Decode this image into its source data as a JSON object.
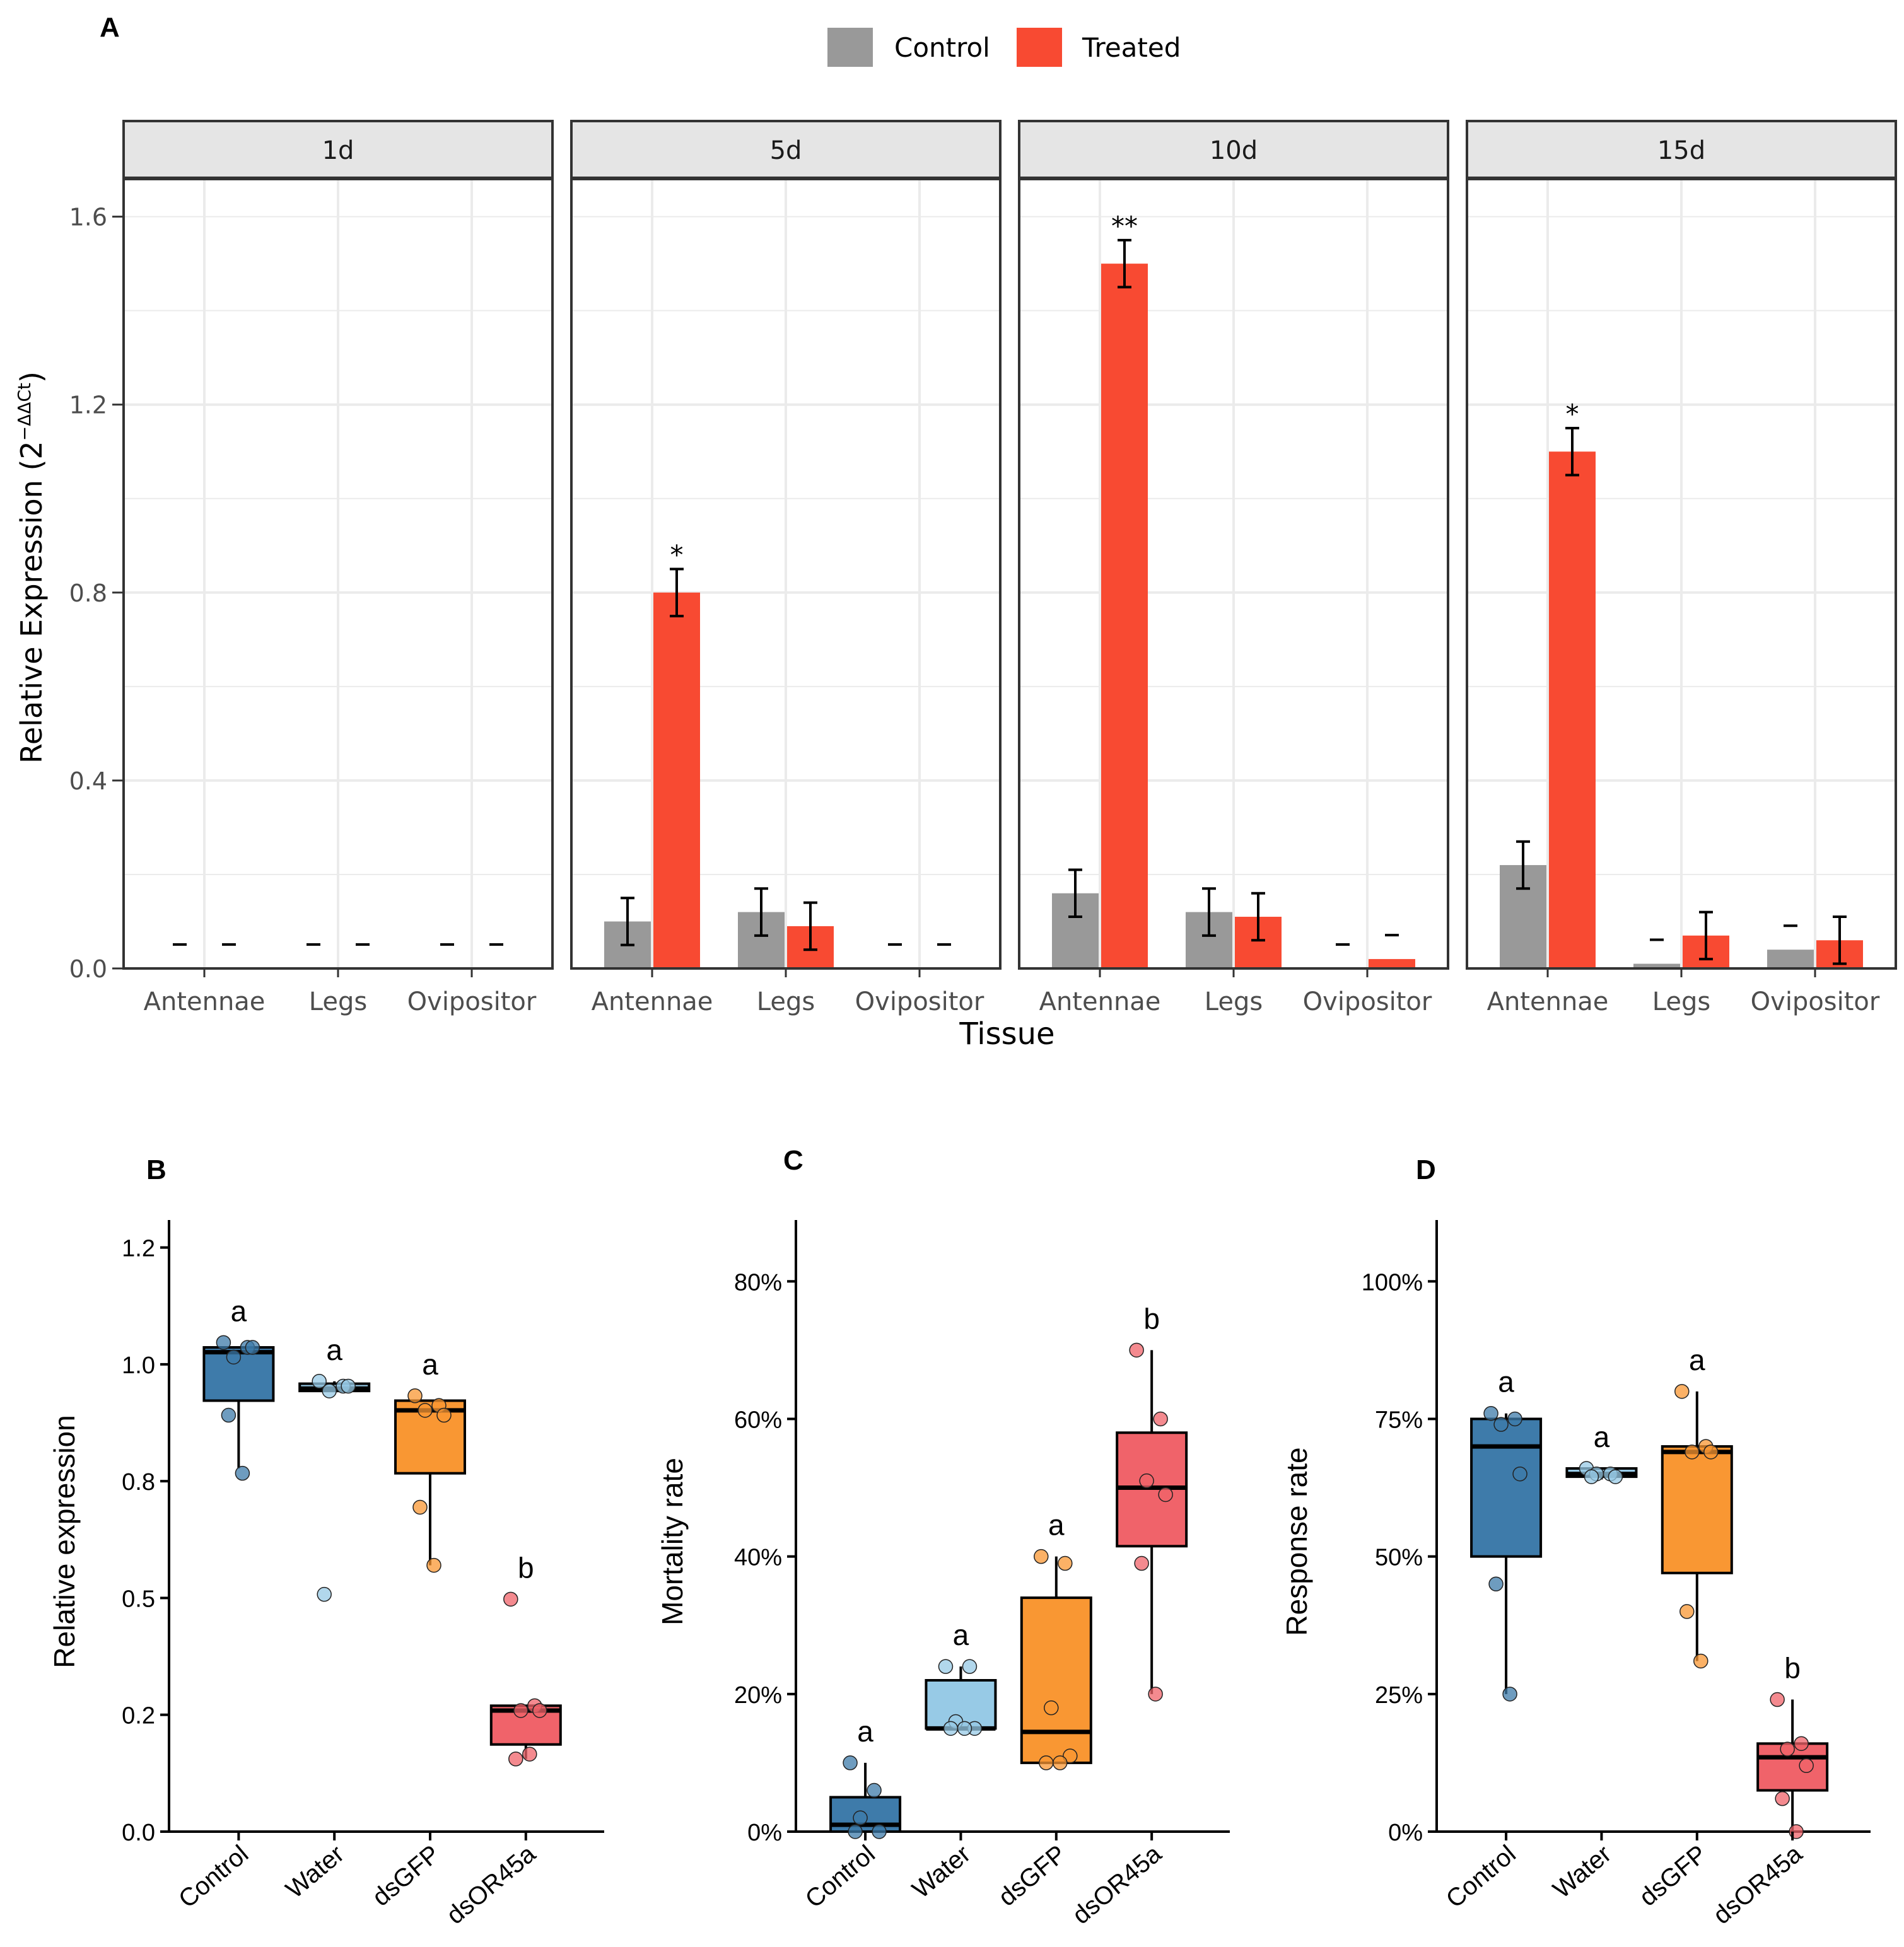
{
  "colors": {
    "control": "#999999",
    "treated": "#F84A32",
    "box_control": "#3E7BAA",
    "box_water": "#97CAE6",
    "box_dsgfp": "#F99733",
    "box_dsor45a": "#F0636A",
    "strip_fill": "#E5E5E5",
    "grid": "#EBEBEB"
  },
  "chart_data": [
    {
      "panel": "A",
      "type": "bar",
      "legend": [
        "Control",
        "Treated"
      ],
      "xlabel": "Tissue",
      "ylabel_main": "Relative Expression (2",
      "ylabel_sup": "−ΔΔCt",
      "ylabel_close": ")",
      "ylim": [
        0,
        1.68
      ],
      "yticks": [
        "0.0",
        "0.4",
        "0.8",
        "1.2",
        "1.6"
      ],
      "categories": [
        "Antennae",
        "Legs",
        "Ovipositor"
      ],
      "facets": [
        {
          "label": "1d",
          "control": [
            0,
            0,
            0
          ],
          "control_err": [
            0,
            0,
            0
          ],
          "treated": [
            0,
            0,
            0
          ],
          "treated_err": [
            0,
            0,
            0
          ],
          "sig": [
            "",
            "",
            ""
          ]
        },
        {
          "label": "5d",
          "control": [
            0.1,
            0.12,
            0
          ],
          "control_err": [
            0.05,
            0.05,
            0
          ],
          "treated": [
            0.8,
            0.09,
            0
          ],
          "treated_err": [
            0.05,
            0.05,
            0
          ],
          "sig": [
            "*",
            "",
            ""
          ]
        },
        {
          "label": "10d",
          "control": [
            0.16,
            0.12,
            0
          ],
          "control_err": [
            0.05,
            0.05,
            0
          ],
          "treated": [
            1.5,
            0.11,
            0.02
          ],
          "treated_err": [
            0.05,
            0.05,
            0
          ],
          "sig": [
            "**",
            "",
            ""
          ]
        },
        {
          "label": "15d",
          "control": [
            0.22,
            0.01,
            0.04
          ],
          "control_err": [
            0.05,
            0,
            0
          ],
          "treated": [
            1.1,
            0.07,
            0.06
          ],
          "treated_err": [
            0.05,
            0.05,
            0.05
          ],
          "sig": [
            "*",
            "",
            ""
          ]
        }
      ]
    },
    {
      "panel": "B",
      "type": "box",
      "ylabel": "Relative expression",
      "ylim": [
        0,
        1.25
      ],
      "yticks": [
        "0.0",
        "0.2",
        "0.5",
        "0.8",
        "1.0",
        "1.2"
      ],
      "categories": [
        "Control",
        "Water",
        "dsGFP",
        "dsOR45a"
      ],
      "boxes": [
        {
          "q1": 0.89,
          "median": 0.99,
          "q3": 1.0,
          "wlo": 0.75,
          "whi": 1.0,
          "letter": "a",
          "points": [
            1.01,
            1.0,
            0.98,
            1.0,
            0.86,
            0.74
          ]
        },
        {
          "q1": 0.91,
          "median": 0.915,
          "q3": 0.925,
          "wlo": 0.91,
          "whi": 0.93,
          "letter": "a",
          "points": [
            0.93,
            0.92,
            0.91,
            0.92,
            0.49
          ]
        },
        {
          "q1": 0.74,
          "median": 0.87,
          "q3": 0.89,
          "wlo": 0.55,
          "whi": 0.89,
          "letter": "a",
          "points": [
            0.9,
            0.88,
            0.87,
            0.86,
            0.67,
            0.55
          ]
        },
        {
          "q1": 0.18,
          "median": 0.25,
          "q3": 0.26,
          "wlo": 0.15,
          "whi": 0.26,
          "letter": "b",
          "points": [
            0.48,
            0.26,
            0.25,
            0.25,
            0.15,
            0.16
          ]
        }
      ]
    },
    {
      "panel": "C",
      "type": "box",
      "ylabel": "Mortality rate",
      "ylim": [
        0,
        88
      ],
      "yticks": [
        "0%",
        "20%",
        "40%",
        "60%",
        "80%"
      ],
      "categories": [
        "Control",
        "Water",
        "dsGFP",
        "dsOR45a"
      ],
      "boxes": [
        {
          "q1": 0,
          "median": 1,
          "q3": 5,
          "wlo": 0,
          "whi": 10,
          "letter": "a",
          "points": [
            10,
            6,
            2,
            0,
            0
          ]
        },
        {
          "q1": 15,
          "median": 15,
          "q3": 22,
          "wlo": 15,
          "whi": 24,
          "letter": "a",
          "points": [
            24,
            24,
            16,
            15,
            15,
            15
          ]
        },
        {
          "q1": 10,
          "median": 14.5,
          "q3": 34,
          "wlo": 10,
          "whi": 40,
          "letter": "a",
          "points": [
            40,
            39,
            18,
            11,
            10,
            10
          ]
        },
        {
          "q1": 41.5,
          "median": 50,
          "q3": 58,
          "wlo": 20,
          "whi": 70,
          "letter": "b",
          "points": [
            70,
            60,
            51,
            49,
            39,
            20
          ]
        }
      ]
    },
    {
      "panel": "D",
      "type": "box",
      "ylabel": "Response rate",
      "ylim": [
        0,
        110
      ],
      "yticks": [
        "0%",
        "25%",
        "50%",
        "75%",
        "100%"
      ],
      "categories": [
        "Control",
        "Water",
        "dsGFP",
        "dsOR45a"
      ],
      "boxes": [
        {
          "q1": 50,
          "median": 70,
          "q3": 75,
          "wlo": 25,
          "whi": 76,
          "letter": "a",
          "points": [
            76,
            75,
            74,
            65,
            45,
            25
          ]
        },
        {
          "q1": 64.5,
          "median": 65,
          "q3": 66,
          "wlo": 64,
          "whi": 66,
          "letter": "a",
          "points": [
            66,
            65,
            65,
            64.5,
            64.5
          ]
        },
        {
          "q1": 47,
          "median": 69,
          "q3": 70,
          "wlo": 31,
          "whi": 80,
          "letter": "a",
          "points": [
            80,
            70,
            69,
            69,
            40,
            31
          ]
        },
        {
          "q1": 7.5,
          "median": 13.5,
          "q3": 16,
          "wlo": 0,
          "whi": 24,
          "letter": "b",
          "points": [
            24,
            16,
            15,
            12,
            6,
            0
          ]
        }
      ]
    }
  ],
  "panel_labels": [
    "A",
    "B",
    "C",
    "D"
  ]
}
